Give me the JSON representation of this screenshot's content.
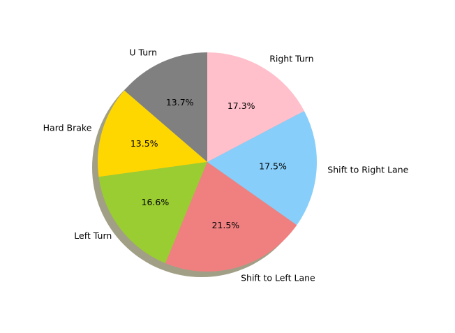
{
  "chart_data": {
    "type": "pie",
    "title": "",
    "shadow": true,
    "start_angle_deg": 90,
    "direction": "counterclockwise",
    "slices": [
      {
        "label": "U Turn",
        "percent_label": "13.7%",
        "value": 13.7,
        "color": "#808080"
      },
      {
        "label": "Hard Brake",
        "percent_label": "13.5%",
        "value": 13.5,
        "color": "#FFD700"
      },
      {
        "label": "Left Turn",
        "percent_label": "16.6%",
        "value": 16.6,
        "color": "#9ACD32"
      },
      {
        "label": "Shift to Left Lane",
        "percent_label": "21.5%",
        "value": 21.5,
        "color": "#F08080"
      },
      {
        "label": "Shift to Right Lane",
        "percent_label": "17.5%",
        "value": 17.5,
        "color": "#87CEFA"
      },
      {
        "label": "Right Turn",
        "percent_label": "17.3%",
        "value": 17.3,
        "color": "#FFC0CB"
      }
    ]
  }
}
